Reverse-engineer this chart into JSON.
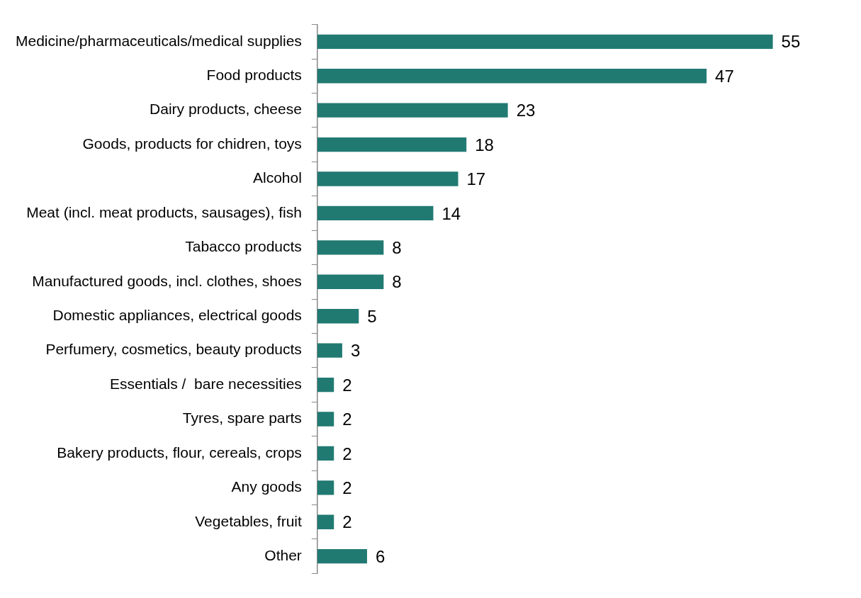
{
  "chart_data": {
    "type": "bar",
    "orientation": "horizontal",
    "categories": [
      "Medicine/pharmaceuticals/medical supplies",
      "Food products",
      "Dairy products, cheese",
      "Goods, products for chidren, toys",
      "Alcohol",
      "Meat (incl. meat products, sausages), fish",
      "Tabacco products",
      "Manufactured goods, incl. clothes, shoes",
      "Domestic appliances, electrical goods",
      "Perfumery, cosmetics, beauty products",
      "Essentials /  bare necessities",
      "Tyres, spare parts",
      "Bakery products, flour, cereals, crops",
      "Any goods",
      "Vegetables, fruit",
      "Other"
    ],
    "values": [
      55,
      47,
      23,
      18,
      17,
      14,
      8,
      8,
      5,
      3,
      2,
      2,
      2,
      2,
      2,
      6
    ],
    "color": "#217a72",
    "data_labels": true,
    "grid": false,
    "legend": false
  }
}
